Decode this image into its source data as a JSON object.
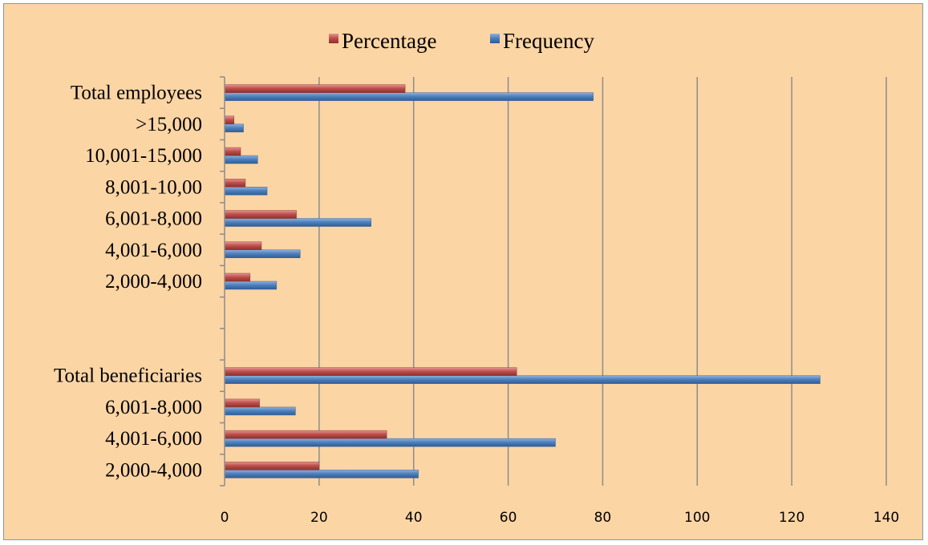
{
  "chart_data": {
    "type": "bar",
    "orientation": "horizontal",
    "categories": [
      "2,000-4,000",
      "4,001-6,000",
      "6,001-8,000",
      "Total beneficiaries",
      "",
      "",
      "2,000-4,000",
      "4,001-6,000",
      "6,001-8,000",
      "8,001-10,00",
      "10,001-15,000",
      ">15,000",
      "Total employees"
    ],
    "series": [
      {
        "name": "Frequency",
        "color": "#4f81bd",
        "values": [
          41,
          70,
          15,
          126,
          null,
          null,
          11,
          16,
          31,
          9,
          7,
          4,
          78
        ]
      },
      {
        "name": "Percentage",
        "color": "#c0504d",
        "values": [
          20,
          34.3,
          7.4,
          61.8,
          null,
          null,
          5.4,
          7.8,
          15.2,
          4.4,
          3.4,
          2,
          38.2
        ]
      }
    ],
    "legend_order": [
      "Percentage",
      "Frequency"
    ],
    "legend_position": "top",
    "xlim": [
      0,
      140
    ],
    "xticks": [
      0,
      20,
      40,
      60,
      80,
      100,
      120,
      140
    ],
    "grid": "vertical"
  }
}
